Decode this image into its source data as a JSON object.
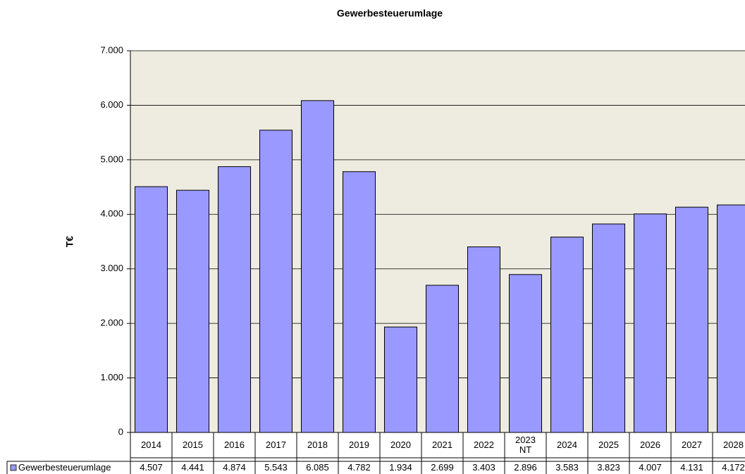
{
  "chart_data": {
    "type": "bar",
    "title": "Gewerbesteuerumlage",
    "y_label": "T€",
    "categories": [
      "2014",
      "2015",
      "2016",
      "2017",
      "2018",
      "2019",
      "2020",
      "2021",
      "2022",
      "2023\nNT",
      "2024",
      "2025",
      "2026",
      "2027",
      "2028"
    ],
    "series": [
      {
        "name": "Gewerbesteuerumlage",
        "color": "#9999ff",
        "values": [
          4507,
          4441,
          4874,
          5543,
          6085,
          4782,
          1934,
          2699,
          3403,
          2896,
          3583,
          3823,
          4007,
          4131,
          4172
        ],
        "value_labels": [
          "4.507",
          "4.441",
          "4.874",
          "5.543",
          "6.085",
          "4.782",
          "1.934",
          "2.699",
          "3.403",
          "2.896",
          "3.583",
          "3.823",
          "4.007",
          "4.131",
          "4.172"
        ]
      }
    ],
    "ylim": [
      0,
      7000
    ],
    "yticks": [
      0,
      {
        "value": 1000,
        "label": "1.000"
      },
      {
        "value": 2000,
        "label": "2.000"
      },
      {
        "value": 3000,
        "label": "3.000"
      },
      {
        "value": 4000,
        "label": "4.000"
      },
      {
        "value": 5000,
        "label": "5.000"
      },
      {
        "value": 6000,
        "label": "6.000"
      },
      {
        "value": 7000,
        "label": "7.000"
      }
    ],
    "grid": true
  }
}
